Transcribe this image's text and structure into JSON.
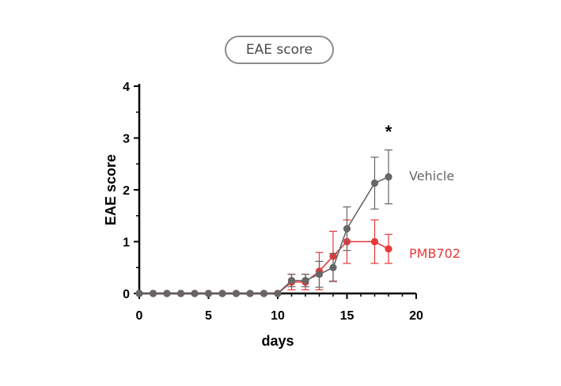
{
  "chart_data": {
    "type": "line",
    "title": "EAE score",
    "xlabel": "days",
    "ylabel": "EAE score",
    "xlim": [
      0,
      20
    ],
    "ylim": [
      0,
      4
    ],
    "xticks": [
      0,
      5,
      10,
      15,
      20
    ],
    "yticks": [
      0,
      1,
      2,
      3,
      4
    ],
    "grid": false,
    "legend_placement": "right (direct labels)",
    "annotation": "*",
    "series": [
      {
        "name": "PMB702",
        "color": "#e8393a",
        "x": [
          0,
          1,
          2,
          3,
          4,
          5,
          6,
          7,
          8,
          9,
          10,
          11,
          12,
          13,
          14,
          15,
          17,
          18
        ],
        "y": [
          0,
          0,
          0,
          0,
          0,
          0,
          0,
          0,
          0,
          0,
          0,
          0.22,
          0.22,
          0.43,
          0.72,
          1.0,
          1.0,
          0.86
        ],
        "err": [
          0,
          0,
          0,
          0,
          0,
          0,
          0,
          0,
          0,
          0,
          0,
          0.15,
          0.15,
          0.36,
          0.48,
          0.42,
          0.42,
          0.28
        ]
      },
      {
        "name": "Vehicle",
        "color": "#666666",
        "x": [
          0,
          1,
          2,
          3,
          4,
          5,
          6,
          7,
          8,
          9,
          10,
          11,
          12,
          13,
          14,
          15,
          17,
          18
        ],
        "y": [
          0,
          0,
          0,
          0,
          0,
          0,
          0,
          0,
          0,
          0,
          0,
          0.25,
          0.25,
          0.37,
          0.5,
          1.25,
          2.13,
          2.25
        ],
        "err": [
          0,
          0,
          0,
          0,
          0,
          0,
          0,
          0,
          0,
          0,
          0,
          0.12,
          0.12,
          0.25,
          0.27,
          0.42,
          0.5,
          0.52
        ]
      }
    ]
  }
}
